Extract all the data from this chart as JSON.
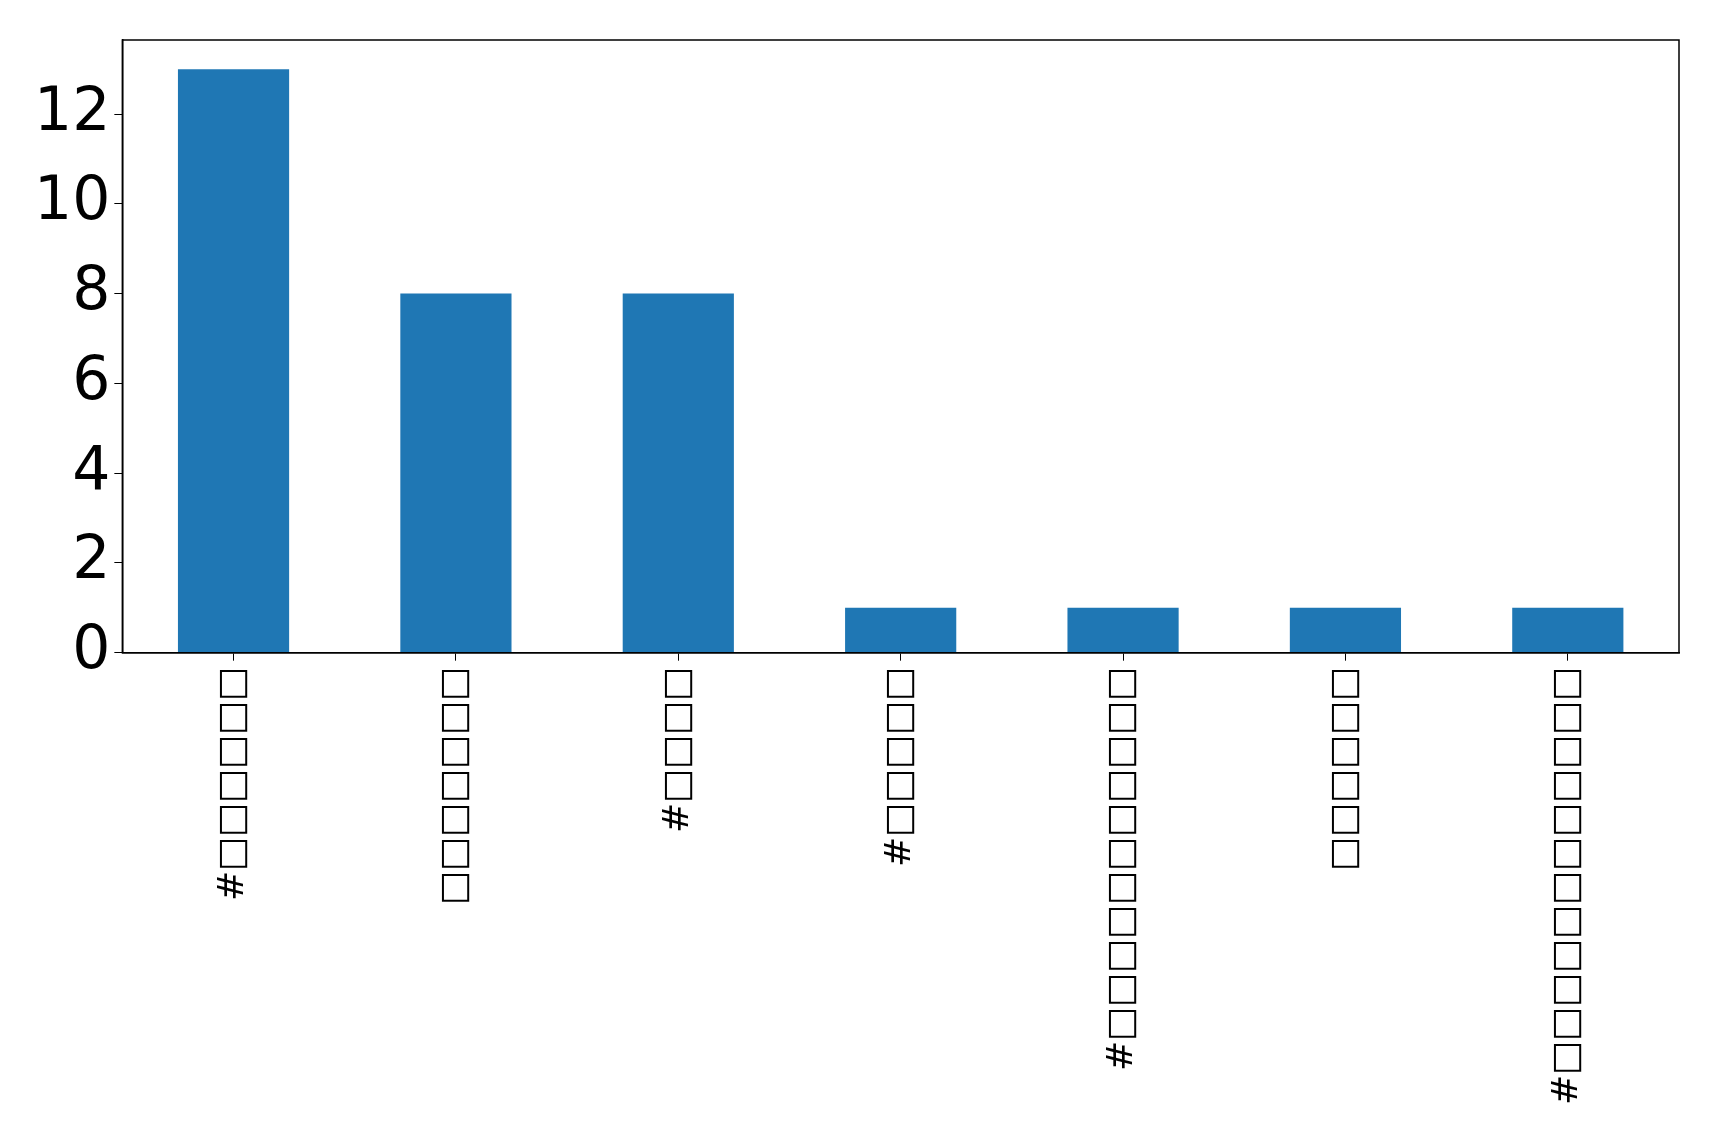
{
  "chart_data": {
    "type": "bar",
    "categories": [
      "#□□□□□□",
      "□□□□□□□",
      "#□□□□",
      "#□□□□□",
      "#□□□□□□□□□□□",
      "□□□□□□",
      "#□□□□□□□□□□□□"
    ],
    "values": [
      13,
      8,
      8,
      1,
      1,
      1,
      1
    ],
    "color": "#1f77b4",
    "ylim": [
      0,
      13.65
    ],
    "yticks": [
      0,
      2,
      4,
      6,
      8,
      10,
      12
    ],
    "grid": false,
    "legend": false
  }
}
